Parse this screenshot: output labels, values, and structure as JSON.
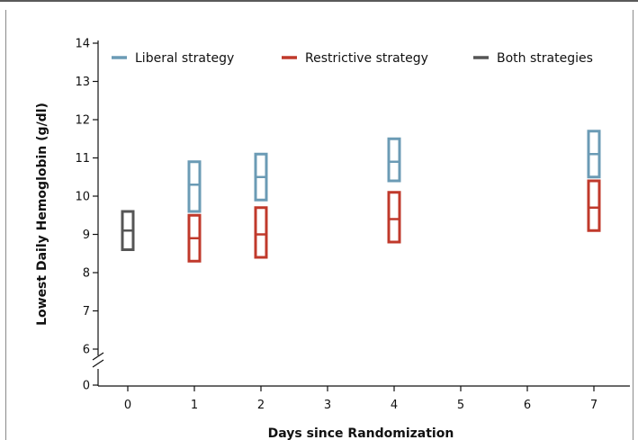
{
  "chart_data": {
    "type": "box",
    "title": "",
    "xlabel": "Days since Randomization",
    "ylabel": "Lowest Daily Hemoglobin (g/dl)",
    "x_ticks": [
      "0",
      "1",
      "2",
      "3",
      "4",
      "5",
      "6",
      "7"
    ],
    "y_ticks": [
      "0",
      "6",
      "7",
      "8",
      "9",
      "10",
      "11",
      "12",
      "13",
      "14"
    ],
    "ylim": [
      6,
      14
    ],
    "y_axis_break": true,
    "grid": false,
    "legend_position": "top",
    "series": [
      {
        "name": "Liberal strategy",
        "color": "#6b9bb5",
        "points": [
          {
            "x": 1,
            "low": 9.6,
            "median": 10.3,
            "high": 10.9
          },
          {
            "x": 2,
            "low": 9.9,
            "median": 10.5,
            "high": 11.1
          },
          {
            "x": 4,
            "low": 10.4,
            "median": 10.9,
            "high": 11.5
          },
          {
            "x": 7,
            "low": 10.5,
            "median": 11.1,
            "high": 11.7
          }
        ]
      },
      {
        "name": "Restrictive strategy",
        "color": "#c0392b",
        "points": [
          {
            "x": 1,
            "low": 8.3,
            "median": 8.9,
            "high": 9.5
          },
          {
            "x": 2,
            "low": 8.4,
            "median": 9.0,
            "high": 9.7
          },
          {
            "x": 4,
            "low": 8.8,
            "median": 9.4,
            "high": 10.1
          },
          {
            "x": 7,
            "low": 9.1,
            "median": 9.7,
            "high": 10.4
          }
        ]
      },
      {
        "name": "Both strategies",
        "color": "#555555",
        "points": [
          {
            "x": 0,
            "low": 8.6,
            "median": 9.1,
            "high": 9.6
          }
        ]
      }
    ]
  }
}
